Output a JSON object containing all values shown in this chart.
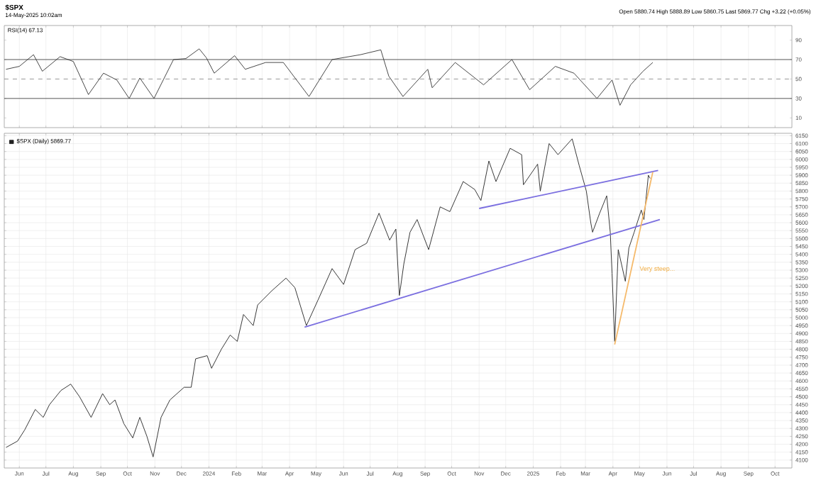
{
  "chart_data": [
    {
      "type": "line",
      "title": "RSI(14) 67.13",
      "annotations": [
        "$SPX",
        "14-May-2025 10:02am",
        "Open 5880.74 High 5888.89 Low 5860.75 Last 5869.77 Chg +3.22 (+0.05%)"
      ],
      "xlim": [
        "2023-05-15",
        "2025-10-20"
      ],
      "ylim": [
        0,
        105
      ],
      "xticks": [
        {
          "value": "2023-06-01",
          "label": null
        },
        {
          "value": "2023-07-01",
          "label": null
        },
        {
          "value": "2023-08-01",
          "label": null
        },
        {
          "value": "2023-09-01",
          "label": null
        },
        {
          "value": "2023-10-01",
          "label": null
        },
        {
          "value": "2023-11-01",
          "label": null
        },
        {
          "value": "2023-12-01",
          "label": null
        },
        {
          "value": "2024-01-01",
          "label": null
        },
        {
          "value": "2024-02-01",
          "label": null
        },
        {
          "value": "2024-03-01",
          "label": null
        },
        {
          "value": "2024-04-01",
          "label": null
        },
        {
          "value": "2024-05-01",
          "label": null
        },
        {
          "value": "2024-06-01",
          "label": null
        },
        {
          "value": "2024-07-01",
          "label": null
        },
        {
          "value": "2024-08-01",
          "label": null
        },
        {
          "value": "2024-09-01",
          "label": null
        },
        {
          "value": "2024-10-01",
          "label": null
        },
        {
          "value": "2024-11-01",
          "label": null
        },
        {
          "value": "2024-12-01",
          "label": null
        },
        {
          "value": "2025-01-01",
          "label": null
        },
        {
          "value": "2025-02-01",
          "label": null
        },
        {
          "value": "2025-03-01",
          "label": null
        },
        {
          "value": "2025-04-01",
          "label": null
        },
        {
          "value": "2025-05-01",
          "label": null
        },
        {
          "value": "2025-06-01",
          "label": null
        },
        {
          "value": "2025-07-01",
          "label": null
        },
        {
          "value": "2025-08-01",
          "label": null
        },
        {
          "value": "2025-09-01",
          "label": null
        },
        {
          "value": "2025-10-01",
          "label": null
        }
      ],
      "yticks": [
        10,
        30,
        50,
        70,
        90
      ],
      "tick_labels": "y",
      "grid": "x",
      "marker": "none",
      "ref_lines": [
        {
          "axis": "y",
          "value": 70,
          "color": "#555555"
        },
        {
          "axis": "y",
          "value": 30,
          "color": "#555555"
        },
        {
          "axis": "y",
          "value": 50,
          "color": "#999999",
          "line_style": "dashed"
        }
      ],
      "series": [
        {
          "color": "#333333",
          "x": [
            "2023-05-17",
            "2023-06-01",
            "2023-06-17",
            "2023-06-27",
            "2023-07-17",
            "2023-08-01",
            "2023-08-18",
            "2023-09-04",
            "2023-09-19",
            "2023-10-03",
            "2023-10-15",
            "2023-10-31",
            "2023-11-22",
            "2023-12-06",
            "2023-12-21",
            "2023-12-29",
            "2024-01-07",
            "2024-01-30",
            "2024-02-11",
            "2024-03-05",
            "2024-03-25",
            "2024-04-23",
            "2024-05-19",
            "2024-06-20",
            "2024-07-13",
            "2024-07-22",
            "2024-08-07",
            "2024-09-04",
            "2024-09-09",
            "2024-10-05",
            "2024-11-06",
            "2024-12-08",
            "2024-12-28",
            "2025-01-26",
            "2025-02-16",
            "2025-03-14",
            "2025-03-31",
            "2025-04-09",
            "2025-04-21",
            "2025-05-05",
            "2025-05-16"
          ],
          "values": [
            60,
            63,
            75,
            58,
            73,
            68,
            34,
            56,
            49,
            30,
            51,
            30,
            70,
            71,
            81,
            72,
            56,
            74,
            60,
            67,
            67,
            32,
            70,
            75,
            80,
            53,
            32,
            60,
            41,
            67,
            44,
            70,
            39,
            63,
            56,
            30,
            49,
            23,
            44,
            58,
            67
          ]
        }
      ]
    },
    {
      "type": "line",
      "annotations": [
        {
          "text": "Very steep...",
          "x": "2025-04-30",
          "y": 5306
        }
      ],
      "xlim": [
        "2023-05-15",
        "2025-10-20"
      ],
      "ylim": [
        4050,
        6165
      ],
      "xticks": [
        {
          "value": "2023-06-01",
          "label": "Jun"
        },
        {
          "value": "2023-07-01",
          "label": "Jul"
        },
        {
          "value": "2023-08-01",
          "label": "Aug"
        },
        {
          "value": "2023-09-01",
          "label": "Sep"
        },
        {
          "value": "2023-10-01",
          "label": "Oct"
        },
        {
          "value": "2023-11-01",
          "label": "Nov"
        },
        {
          "value": "2023-12-01",
          "label": "Dec"
        },
        {
          "value": "2024-01-01",
          "label": "2024"
        },
        {
          "value": "2024-02-01",
          "label": "Feb"
        },
        {
          "value": "2024-03-01",
          "label": "Mar"
        },
        {
          "value": "2024-04-01",
          "label": "Apr"
        },
        {
          "value": "2024-05-01",
          "label": "May"
        },
        {
          "value": "2024-06-01",
          "label": "Jun"
        },
        {
          "value": "2024-07-01",
          "label": "Jul"
        },
        {
          "value": "2024-08-01",
          "label": "Aug"
        },
        {
          "value": "2024-09-01",
          "label": "Sep"
        },
        {
          "value": "2024-10-01",
          "label": "Oct"
        },
        {
          "value": "2024-11-01",
          "label": "Nov"
        },
        {
          "value": "2024-12-01",
          "label": "Dec"
        },
        {
          "value": "2025-01-01",
          "label": "2025"
        },
        {
          "value": "2025-02-01",
          "label": "Feb"
        },
        {
          "value": "2025-03-01",
          "label": "Mar"
        },
        {
          "value": "2025-04-01",
          "label": "Apr"
        },
        {
          "value": "2025-05-01",
          "label": "May"
        },
        {
          "value": "2025-06-01",
          "label": "Jun"
        },
        {
          "value": "2025-07-01",
          "label": "Jul"
        },
        {
          "value": "2025-08-01",
          "label": "Aug"
        },
        {
          "value": "2025-09-01",
          "label": "Sep"
        },
        {
          "value": "2025-10-01",
          "label": "Oct"
        }
      ],
      "yticks": [
        4100,
        4150,
        4200,
        4250,
        4300,
        4350,
        4400,
        4450,
        4500,
        4550,
        4600,
        4650,
        4700,
        4750,
        4800,
        4850,
        4900,
        4950,
        5000,
        5050,
        5100,
        5150,
        5200,
        5250,
        5300,
        5350,
        5400,
        5450,
        5500,
        5550,
        5600,
        5650,
        5700,
        5750,
        5800,
        5850,
        5900,
        5950,
        6000,
        6050,
        6100,
        6150
      ],
      "grid": true,
      "legend": "top left",
      "marker": "none",
      "series": [
        {
          "name": "$SPX (Daily) 5869.77",
          "color": "#222222",
          "x": [
            "2023-05-17",
            "2023-05-30",
            "2023-06-07",
            "2023-06-19",
            "2023-06-28",
            "2023-07-05",
            "2023-07-18",
            "2023-07-29",
            "2023-08-08",
            "2023-08-21",
            "2023-09-03",
            "2023-09-11",
            "2023-09-17",
            "2023-09-27",
            "2023-10-07",
            "2023-10-15",
            "2023-10-23",
            "2023-10-30",
            "2023-11-08",
            "2023-11-18",
            "2023-12-04",
            "2023-12-12",
            "2023-12-17",
            "2023-12-30",
            "2024-01-04",
            "2024-01-15",
            "2024-01-25",
            "2024-02-02",
            "2024-02-09",
            "2024-02-20",
            "2024-02-25",
            "2024-03-12",
            "2024-03-28",
            "2024-04-07",
            "2024-04-20",
            "2024-05-03",
            "2024-05-19",
            "2024-06-01",
            "2024-06-14",
            "2024-06-27",
            "2024-07-11",
            "2024-07-23",
            "2024-07-30",
            "2024-08-03",
            "2024-08-08",
            "2024-08-15",
            "2024-08-23",
            "2024-09-05",
            "2024-09-18",
            "2024-09-29",
            "2024-10-14",
            "2024-10-27",
            "2024-11-03",
            "2024-11-12",
            "2024-11-20",
            "2024-12-06",
            "2024-12-19",
            "2024-12-21",
            "2025-01-06",
            "2025-01-09",
            "2025-01-19",
            "2025-01-29",
            "2025-02-14",
            "2025-02-22",
            "2025-03-02",
            "2025-03-07",
            "2025-03-09",
            "2025-03-17",
            "2025-03-25",
            "2025-03-29",
            "2025-03-31",
            "2025-04-03",
            "2025-04-07",
            "2025-04-15",
            "2025-04-19",
            "2025-04-25",
            "2025-05-03",
            "2025-05-06",
            "2025-05-11",
            "2025-05-13"
          ],
          "values": [
            4180,
            4220,
            4290,
            4420,
            4370,
            4450,
            4540,
            4580,
            4500,
            4370,
            4520,
            4450,
            4480,
            4330,
            4240,
            4370,
            4250,
            4120,
            4370,
            4480,
            4560,
            4560,
            4740,
            4760,
            4680,
            4800,
            4890,
            4850,
            5020,
            4950,
            5080,
            5170,
            5250,
            5190,
            4950,
            5110,
            5310,
            5210,
            5430,
            5470,
            5660,
            5490,
            5560,
            5140,
            5340,
            5540,
            5620,
            5430,
            5700,
            5670,
            5860,
            5810,
            5740,
            5990,
            5860,
            6070,
            6030,
            5840,
            5970,
            5800,
            6100,
            6030,
            6130,
            5960,
            5800,
            5600,
            5540,
            5660,
            5770,
            5540,
            5280,
            4850,
            5430,
            5230,
            5440,
            5540,
            5680,
            5620,
            5900,
            5880
          ]
        },
        {
          "color": "#7b6fe0",
          "x": [
            "2024-04-18",
            "2025-05-24"
          ],
          "values": [
            4940,
            5620
          ]
        },
        {
          "color": "#7b6fe0",
          "x": [
            "2024-11-01",
            "2025-05-22"
          ],
          "values": [
            5690,
            5930
          ]
        },
        {
          "color": "#f5b96a",
          "x": [
            "2025-04-03",
            "2025-05-16"
          ],
          "values": [
            4830,
            5920
          ]
        }
      ]
    }
  ]
}
